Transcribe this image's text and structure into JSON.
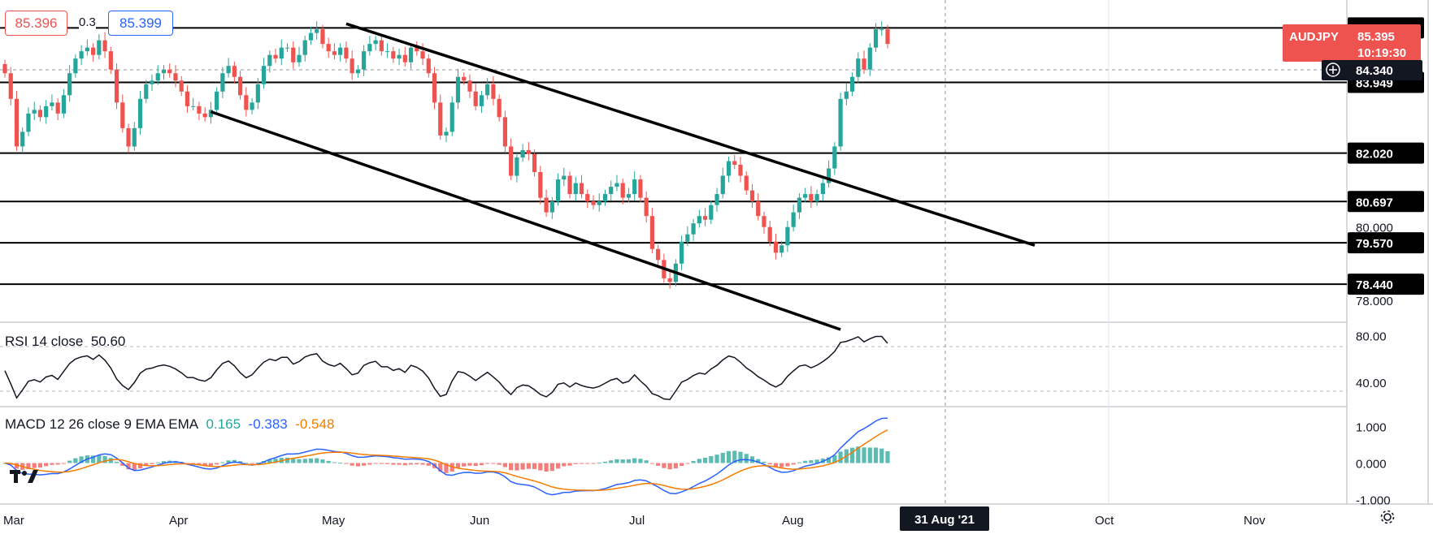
{
  "symbol_tag": {
    "name": "AUDJPY",
    "price": "85.395",
    "countdown": "10:19:30"
  },
  "quote_box": {
    "bid": "85.396",
    "spread": "0.3",
    "ask": "85.399"
  },
  "crosshair_price": "84.340",
  "date_cursor": "31 Aug '21",
  "time_axis": [
    "Mar",
    "Apr",
    "May",
    "Jun",
    "Jul",
    "Aug",
    "Oct",
    "Nov"
  ],
  "colors": {
    "up": "#26a69a",
    "down": "#ef5350",
    "macd": "#2962ff",
    "signal": "#f57c00",
    "hist_pos": "#26a69a",
    "hist_neg": "#ef5350"
  },
  "icons": [
    "tradingview-logo-icon",
    "crosshair-plus-icon",
    "settings-gear-icon"
  ],
  "chart_data": [
    {
      "type": "candlestick",
      "title": "AUDJPY",
      "ylim": [
        77.4,
        86.2
      ],
      "price_ticks": [
        "80.000",
        "78.000"
      ],
      "horizontal_levels": [
        "85.438",
        "83.949",
        "82.020",
        "80.697",
        "79.570",
        "78.440"
      ],
      "trendlines": [
        {
          "name": "upper channel",
          "from": [
            "2021-05-20",
            85.55
          ],
          "to": [
            "2021-11-01",
            79.5
          ]
        },
        {
          "name": "lower channel",
          "from": [
            "2021-04-19",
            83.15
          ],
          "to": [
            "2021-09-15",
            77.2
          ]
        }
      ],
      "close_series": {
        "start_date": "2021-03-01",
        "interval": "business-day",
        "values": [
          84.2,
          83.5,
          82.2,
          82.6,
          83.1,
          83.2,
          83.0,
          83.3,
          83.4,
          83.1,
          83.6,
          84.2,
          84.6,
          84.8,
          84.9,
          84.7,
          85.1,
          84.8,
          84.3,
          83.4,
          82.7,
          82.2,
          82.7,
          83.5,
          83.9,
          84.0,
          84.2,
          84.3,
          84.2,
          84.0,
          83.7,
          83.3,
          83.3,
          83.1,
          83.0,
          83.2,
          83.7,
          84.2,
          84.4,
          84.1,
          83.6,
          83.2,
          83.4,
          83.9,
          84.4,
          84.7,
          84.6,
          84.9,
          84.9,
          84.5,
          84.7,
          85.1,
          85.3,
          85.4,
          85.0,
          84.8,
          84.7,
          84.9,
          84.6,
          84.2,
          84.3,
          84.8,
          85.0,
          85.1,
          84.8,
          84.8,
          84.6,
          84.7,
          84.5,
          84.9,
          84.8,
          84.6,
          84.2,
          83.4,
          82.5,
          82.6,
          83.4,
          84.1,
          84.0,
          83.7,
          83.3,
          83.6,
          83.9,
          83.5,
          83.0,
          82.2,
          81.4,
          81.9,
          82.1,
          82.0,
          81.5,
          80.8,
          80.4,
          80.7,
          81.3,
          81.4,
          80.9,
          81.2,
          80.9,
          80.7,
          80.6,
          80.7,
          80.9,
          81.1,
          81.2,
          80.8,
          80.9,
          81.3,
          80.8,
          80.3,
          79.4,
          79.1,
          78.6,
          78.5,
          79.0,
          79.6,
          79.8,
          80.1,
          80.3,
          80.2,
          80.6,
          80.9,
          81.4,
          81.8,
          81.7,
          81.4,
          81.0,
          80.7,
          80.3,
          80.0,
          79.6,
          79.3,
          79.5,
          80.0,
          80.4,
          80.8,
          80.9,
          80.7,
          80.9,
          81.2,
          81.6,
          82.2,
          83.5,
          83.7,
          84.1,
          84.6,
          84.3,
          84.9,
          85.4,
          85.4,
          85.0
        ]
      }
    },
    {
      "type": "line",
      "title": "RSI 14 close",
      "value": "50.60",
      "ylim": [
        20,
        90
      ],
      "ticks": [
        "80.00",
        "40.00"
      ],
      "bands": [
        70,
        30
      ]
    },
    {
      "type": "bar",
      "title": "MACD 12 26 close 9 EMA EMA",
      "values_shown": {
        "histogram": "0.165",
        "macd": "-0.383",
        "signal": "-0.548"
      },
      "ylim": [
        -1.1,
        1.5
      ],
      "ticks": [
        "1.000",
        "0.000",
        "-1.000"
      ]
    }
  ]
}
